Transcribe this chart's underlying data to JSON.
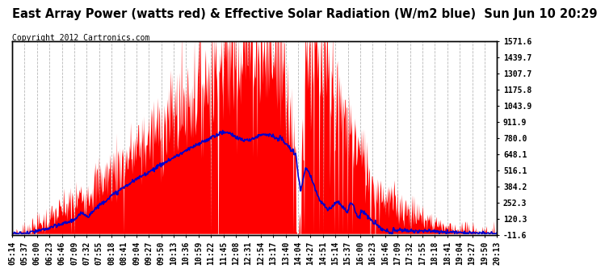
{
  "title": "East Array Power (watts red) & Effective Solar Radiation (W/m2 blue)  Sun Jun 10 20:29",
  "copyright": "Copyright 2012 Cartronics.com",
  "y_right_ticks": [
    -11.6,
    120.3,
    252.3,
    384.2,
    516.1,
    648.1,
    780.0,
    911.9,
    1043.9,
    1175.8,
    1307.7,
    1439.7,
    1571.6
  ],
  "x_labels": [
    "05:14",
    "05:37",
    "06:00",
    "06:23",
    "06:46",
    "07:09",
    "07:32",
    "07:55",
    "08:18",
    "08:41",
    "09:04",
    "09:27",
    "09:50",
    "10:13",
    "10:36",
    "10:59",
    "11:22",
    "11:45",
    "12:08",
    "12:31",
    "12:54",
    "13:17",
    "13:40",
    "14:04",
    "14:27",
    "14:51",
    "15:14",
    "15:37",
    "16:00",
    "16:23",
    "16:46",
    "17:09",
    "17:32",
    "17:55",
    "18:18",
    "18:41",
    "19:04",
    "19:27",
    "19:50",
    "20:13"
  ],
  "bg_color": "#ffffff",
  "grid_color": "#b0b0b0",
  "red_color": "#ff0000",
  "blue_color": "#0000cc",
  "title_fontsize": 10.5,
  "copyright_fontsize": 7,
  "tick_fontsize": 7,
  "ymin": -11.6,
  "ymax": 1571.6
}
